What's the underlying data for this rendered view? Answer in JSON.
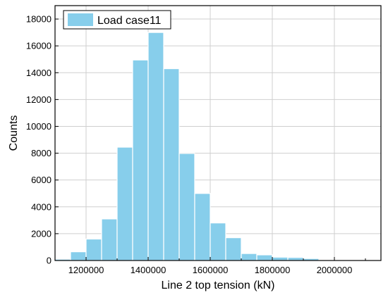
{
  "chart_data": {
    "type": "bar",
    "subtype": "histogram",
    "xlabel": "Line 2 top tension (kN)",
    "ylabel": "Counts",
    "xlim": [
      1100000,
      2150000
    ],
    "ylim": [
      0,
      19000
    ],
    "xticks": [
      1200000,
      1400000,
      1600000,
      1800000,
      2000000
    ],
    "yticks": [
      0,
      2000,
      4000,
      6000,
      8000,
      10000,
      12000,
      14000,
      16000,
      18000
    ],
    "bin_width": 50000,
    "bins_start": [
      1100000,
      1150000,
      1200000,
      1250000,
      1300000,
      1350000,
      1400000,
      1450000,
      1500000,
      1550000,
      1600000,
      1650000,
      1700000,
      1750000,
      1800000,
      1850000,
      1900000,
      1950000,
      2000000,
      2050000
    ],
    "series": [
      {
        "name": "Load case11",
        "color": "#87CEEB",
        "values": [
          100,
          650,
          1600,
          3100,
          8450,
          14950,
          17000,
          14300,
          7980,
          5000,
          2800,
          1700,
          520,
          420,
          250,
          230,
          150,
          20,
          0,
          0
        ]
      }
    ],
    "grid": true,
    "legend_position": "top-left"
  }
}
